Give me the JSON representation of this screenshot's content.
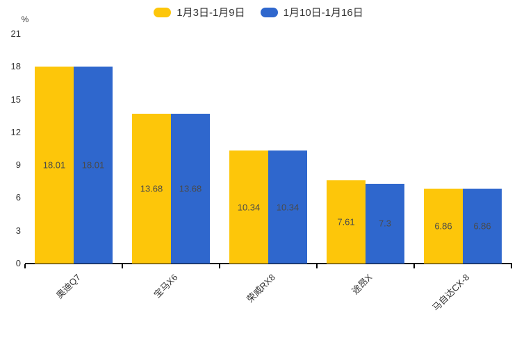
{
  "chart_data": {
    "type": "bar",
    "unit": "%",
    "categories": [
      "奥迪Q7",
      "宝马X6",
      "荣威RX8",
      "途昂X",
      "马自达CX-8"
    ],
    "series": [
      {
        "name": "1月3日-1月9日",
        "color": "#FDC60A",
        "values": [
          18.01,
          13.68,
          10.34,
          7.61,
          6.86
        ]
      },
      {
        "name": "1月10日-1月16日",
        "color": "#2F67CD",
        "values": [
          18.01,
          13.68,
          10.34,
          7.3,
          6.86
        ]
      }
    ],
    "value_labels": [
      [
        "18.01",
        "13.68",
        "10.34",
        "7.61",
        "6.86"
      ],
      [
        "18.01",
        "13.68",
        "10.34",
        "7.3",
        "6.86"
      ]
    ],
    "y_ticks": [
      0,
      3,
      6,
      9,
      12,
      15,
      18,
      21
    ],
    "ylim": [
      0,
      21
    ],
    "legend_position": "top",
    "grid": false,
    "colors": {
      "axis": "#000000",
      "tick_text": "#333333",
      "value_text": "#4a4a4a"
    }
  }
}
